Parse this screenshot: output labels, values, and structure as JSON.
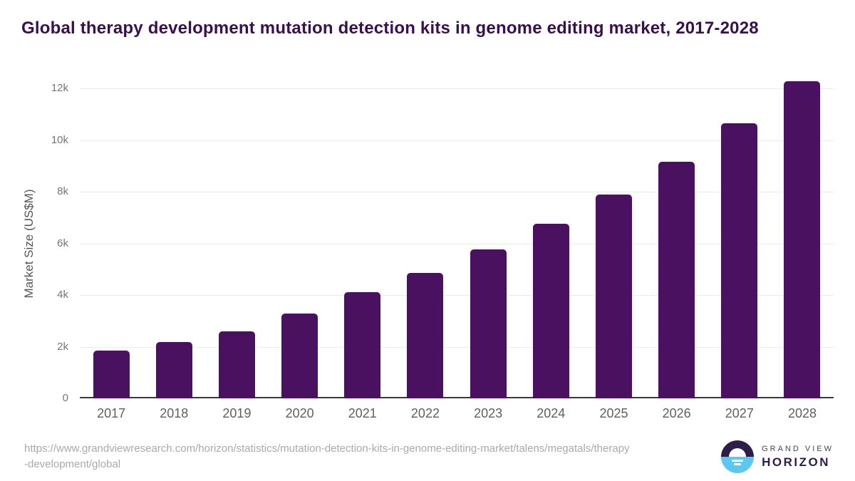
{
  "title": "Global therapy development mutation detection kits in genome editing market, 2017-2028",
  "source": {
    "url_line1": "https://www.grandviewresearch.com/horizon/statistics/mutation-detection-kits-in-genome-editing-market/talens/megatals/therapy",
    "url_line2": "-development/global"
  },
  "logo": {
    "icon": "sunrise-horizon-icon",
    "top_text": "GRAND VIEW",
    "bottom_text": "HORIZON"
  },
  "colors": {
    "bar": "#4b1161",
    "title": "#38104f",
    "gridline": "#ececec",
    "axis": "#3a3a3a",
    "tick_text": "#757575",
    "x_label_text": "#5f5f5f",
    "url_text": "#a9a9a9",
    "logo_dark": "#2d1d49",
    "logo_blue": "#5bc8f2"
  },
  "chart_data": {
    "type": "bar",
    "title": "Global therapy development mutation detection kits in genome editing market, 2017-2028",
    "xlabel": "",
    "ylabel": "Market Size (US$M)",
    "categories": [
      "2017",
      "2018",
      "2019",
      "2020",
      "2021",
      "2022",
      "2023",
      "2024",
      "2025",
      "2026",
      "2027",
      "2028"
    ],
    "values": [
      1850,
      2170,
      2590,
      3280,
      4120,
      4860,
      5760,
      6760,
      7890,
      9160,
      10650,
      12300
    ],
    "ylim": [
      0,
      12400
    ],
    "yticks": [
      {
        "label": "0",
        "value": 0
      },
      {
        "label": "2k",
        "value": 2000
      },
      {
        "label": "4k",
        "value": 4000
      },
      {
        "label": "6k",
        "value": 6000
      },
      {
        "label": "8k",
        "value": 8000
      },
      {
        "label": "10k",
        "value": 10000
      },
      {
        "label": "12k",
        "value": 12000
      }
    ],
    "grid": true,
    "legend": false,
    "bar_color": "#4b1161"
  }
}
